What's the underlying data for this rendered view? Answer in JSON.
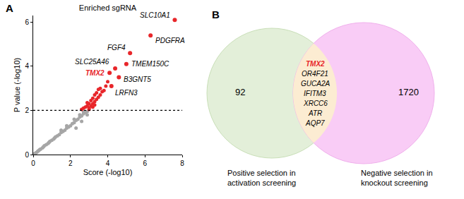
{
  "chart_data": [
    {
      "panel": "A",
      "type": "scatter",
      "title": "Enriched sgRNA",
      "x_label": "Score (-log10)",
      "y_label": "P value (-log10)",
      "xlim": [
        0,
        8
      ],
      "xticks": [
        0,
        2,
        4,
        6,
        8
      ],
      "ylim": [
        0,
        6.3
      ],
      "yticks": [
        0,
        2,
        4,
        6
      ],
      "threshold": {
        "value": 2,
        "line_style": "dashed"
      },
      "series": [
        {
          "color": "#a6a6a6",
          "x": [
            0.05,
            0.1,
            0.15,
            0.2,
            0.25,
            0.3,
            0.35,
            0.4,
            0.5,
            0.55,
            0.6,
            0.7,
            0.8,
            0.85,
            0.9,
            1.0,
            1.1,
            1.15,
            1.2,
            1.3,
            1.4,
            1.5,
            1.6,
            1.7,
            1.8,
            1.9,
            2.0,
            2.1,
            2.2,
            2.3,
            2.4,
            2.5,
            2.6,
            2.7,
            2.8,
            2.9,
            1.5,
            1.8,
            2.2,
            2.5,
            2.7,
            2.9,
            2.3,
            2.6
          ],
          "values": [
            0.02,
            0.05,
            0.08,
            0.1,
            0.15,
            0.18,
            0.22,
            0.25,
            0.3,
            0.35,
            0.4,
            0.45,
            0.5,
            0.55,
            0.6,
            0.65,
            0.7,
            0.75,
            0.8,
            0.85,
            0.9,
            1.0,
            1.05,
            1.1,
            1.2,
            1.25,
            1.3,
            1.4,
            1.45,
            1.55,
            1.6,
            1.7,
            1.75,
            1.85,
            1.9,
            1.95,
            1.1,
            1.3,
            1.6,
            1.8,
            1.95,
            1.8,
            1.2,
            1.5
          ]
        },
        {
          "color": "#e8262a",
          "x": [
            2.6,
            2.7,
            2.8,
            2.9,
            3.0,
            3.0,
            3.1,
            3.1,
            3.2,
            3.2,
            3.3,
            3.3,
            3.4,
            3.4,
            3.5,
            3.5,
            3.6,
            3.6,
            3.7,
            3.8,
            3.9,
            4.0,
            3.2,
            2.9,
            3.0,
            3.3
          ],
          "values": [
            2.05,
            2.1,
            2.15,
            2.2,
            2.1,
            2.3,
            2.2,
            2.45,
            2.3,
            2.55,
            2.4,
            2.7,
            2.5,
            2.8,
            2.6,
            2.95,
            2.7,
            3.0,
            2.85,
            2.9,
            3.1,
            3.3,
            2.15,
            2.35,
            2.05,
            2.25
          ]
        }
      ],
      "labels": [
        {
          "text": "SLC10A1",
          "x": 7.6,
          "y": 6.1,
          "color": "#000000"
        },
        {
          "text": "PDGFRA",
          "x": 6.3,
          "y": 5.4,
          "color": "#000000"
        },
        {
          "text": "FGF4",
          "x": 5.2,
          "y": 4.6,
          "color": "#000000"
        },
        {
          "text": "TMEM150C",
          "x": 5.0,
          "y": 4.1,
          "color": "#000000"
        },
        {
          "text": "SLC25A46",
          "x": 4.4,
          "y": 3.9,
          "color": "#000000"
        },
        {
          "text": "TMX2",
          "x": 4.1,
          "y": 3.7,
          "color": "#e8262a"
        },
        {
          "text": "B3GNT5",
          "x": 4.6,
          "y": 3.5,
          "color": "#000000"
        },
        {
          "text": "LRFN3",
          "x": 4.2,
          "y": 3.1,
          "color": "#000000"
        }
      ]
    },
    {
      "panel": "B",
      "type": "venn",
      "sets": [
        {
          "label": [
            "Positive selection in",
            "activation screening"
          ],
          "count": 92,
          "color": "#e3efd9"
        },
        {
          "label": [
            "Negative selection in",
            "knockout screening"
          ],
          "count": 1720,
          "color": "#f9ccf6"
        }
      ],
      "overlap": {
        "genes": [
          "TMX2",
          "OR4F21",
          "GUCA2A",
          "IFITM3",
          "XRCC6",
          "ATR",
          "AQP7"
        ],
        "highlight": "TMX2",
        "highlight_color": "#e8262a",
        "color": "#fcecd2"
      }
    }
  ]
}
